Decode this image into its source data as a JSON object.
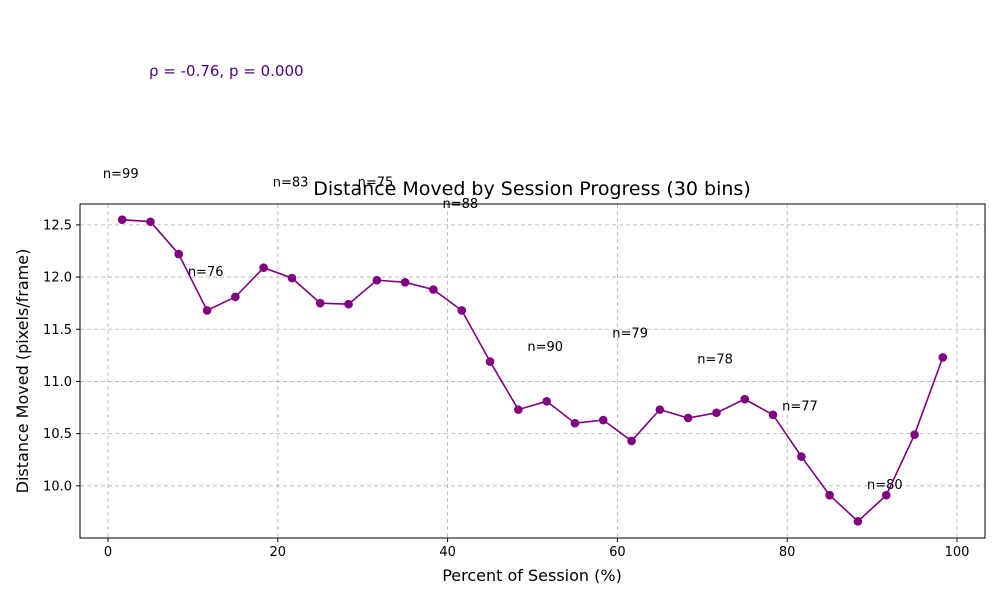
{
  "chart_data": {
    "type": "line",
    "title": "Distance Moved by Session Progress (30 bins)",
    "xlabel": "Percent of Session (%)",
    "ylabel": "Distance Moved (pixels/frame)",
    "xlim": [
      -3.3,
      103.3
    ],
    "ylim": [
      9.5,
      12.7
    ],
    "x_ticks": [
      0,
      20,
      40,
      60,
      80,
      100
    ],
    "y_ticks": [
      10.0,
      10.5,
      11.0,
      11.5,
      12.0,
      12.5
    ],
    "grid": true,
    "series_color": "#800080",
    "correlation_text": "ρ = -0.76, p = 0.000",
    "correlation_color": "#4b0082",
    "series": [
      {
        "x": [
          1.67,
          5.0,
          8.33,
          11.67,
          15.0,
          18.33,
          21.67,
          25.0,
          28.33,
          31.67,
          35.0,
          38.33,
          41.67,
          45.0,
          48.33,
          51.67,
          55.0,
          58.33,
          61.67,
          65.0,
          68.33,
          71.67,
          75.0,
          78.33,
          81.67,
          85.0,
          88.33,
          91.67,
          95.0,
          98.33
        ],
        "values": [
          12.55,
          12.53,
          12.22,
          11.68,
          11.81,
          12.09,
          11.99,
          11.75,
          11.74,
          11.97,
          11.95,
          11.88,
          11.68,
          11.19,
          10.73,
          10.81,
          10.6,
          10.63,
          10.43,
          10.73,
          10.65,
          10.7,
          10.83,
          10.68,
          10.28,
          9.91,
          9.66,
          9.91,
          10.49,
          11.23
        ]
      }
    ],
    "annotations": [
      {
        "text": "n=99",
        "x": -0.6,
        "y": 12.95
      },
      {
        "text": "n=76",
        "x": 9.4,
        "y": 12.01
      },
      {
        "text": "n=83",
        "x": 19.4,
        "y": 12.87
      },
      {
        "text": "n=75",
        "x": 29.4,
        "y": 12.87
      },
      {
        "text": "n=88",
        "x": 39.4,
        "y": 12.66
      },
      {
        "text": "n=90",
        "x": 49.4,
        "y": 11.29
      },
      {
        "text": "n=79",
        "x": 59.4,
        "y": 11.42
      },
      {
        "text": "n=78",
        "x": 69.4,
        "y": 11.17
      },
      {
        "text": "n=77",
        "x": 79.4,
        "y": 10.72
      },
      {
        "text": "n=80",
        "x": 89.4,
        "y": 9.97
      }
    ]
  }
}
